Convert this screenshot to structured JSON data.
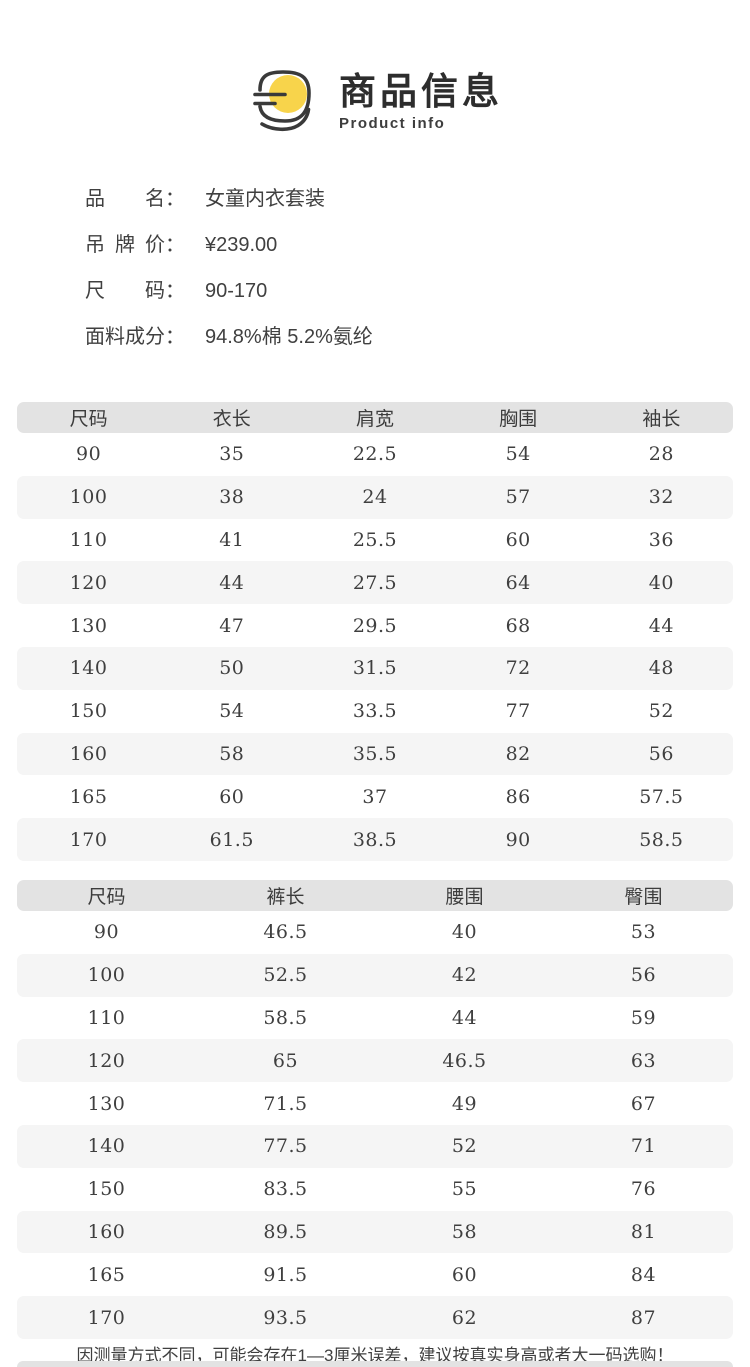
{
  "header": {
    "title": "商品信息",
    "subtitle": "Product info",
    "icon": "chat-bubble-icon"
  },
  "product": {
    "colon": "：",
    "fields": [
      {
        "label": "品名",
        "value": "女童内衣套装"
      },
      {
        "label": "吊牌价",
        "value": "¥239.00"
      },
      {
        "label": "尺码",
        "value": "90-170"
      },
      {
        "label": "面料成分",
        "value": "94.8%棉 5.2%氨纶"
      }
    ]
  },
  "top_table": {
    "headers": [
      "尺码",
      "衣长",
      "肩宽",
      "胸围",
      "袖长"
    ],
    "rows": [
      [
        "90",
        "35",
        "22.5",
        "54",
        "28"
      ],
      [
        "100",
        "38",
        "24",
        "57",
        "32"
      ],
      [
        "110",
        "41",
        "25.5",
        "60",
        "36"
      ],
      [
        "120",
        "44",
        "27.5",
        "64",
        "40"
      ],
      [
        "130",
        "47",
        "29.5",
        "68",
        "44"
      ],
      [
        "140",
        "50",
        "31.5",
        "72",
        "48"
      ],
      [
        "150",
        "54",
        "33.5",
        "77",
        "52"
      ],
      [
        "160",
        "58",
        "35.5",
        "82",
        "56"
      ],
      [
        "165",
        "60",
        "37",
        "86",
        "57.5"
      ],
      [
        "170",
        "61.5",
        "38.5",
        "90",
        "58.5"
      ]
    ]
  },
  "bottom_table": {
    "headers": [
      "尺码",
      "裤长",
      "腰围",
      "臀围"
    ],
    "rows": [
      [
        "90",
        "46.5",
        "40",
        "53"
      ],
      [
        "100",
        "52.5",
        "42",
        "56"
      ],
      [
        "110",
        "58.5",
        "44",
        "59"
      ],
      [
        "120",
        "65",
        "46.5",
        "63"
      ],
      [
        "130",
        "71.5",
        "49",
        "67"
      ],
      [
        "140",
        "77.5",
        "52",
        "71"
      ],
      [
        "150",
        "83.5",
        "55",
        "76"
      ],
      [
        "160",
        "89.5",
        "58",
        "81"
      ],
      [
        "165",
        "91.5",
        "60",
        "84"
      ],
      [
        "170",
        "93.5",
        "62",
        "87"
      ]
    ]
  },
  "footer": {
    "note": "因测量方式不同，可能会存在1—3厘米误差，建议按真实身高或者大一码选购！"
  },
  "colors": {
    "accent_yellow": "#F8D44B",
    "icon_stroke": "#3a3a3a",
    "table_header_bg": "#e3e3e3",
    "table_alt_row_bg": "#f5f5f5",
    "text": "#3e3e3e"
  }
}
